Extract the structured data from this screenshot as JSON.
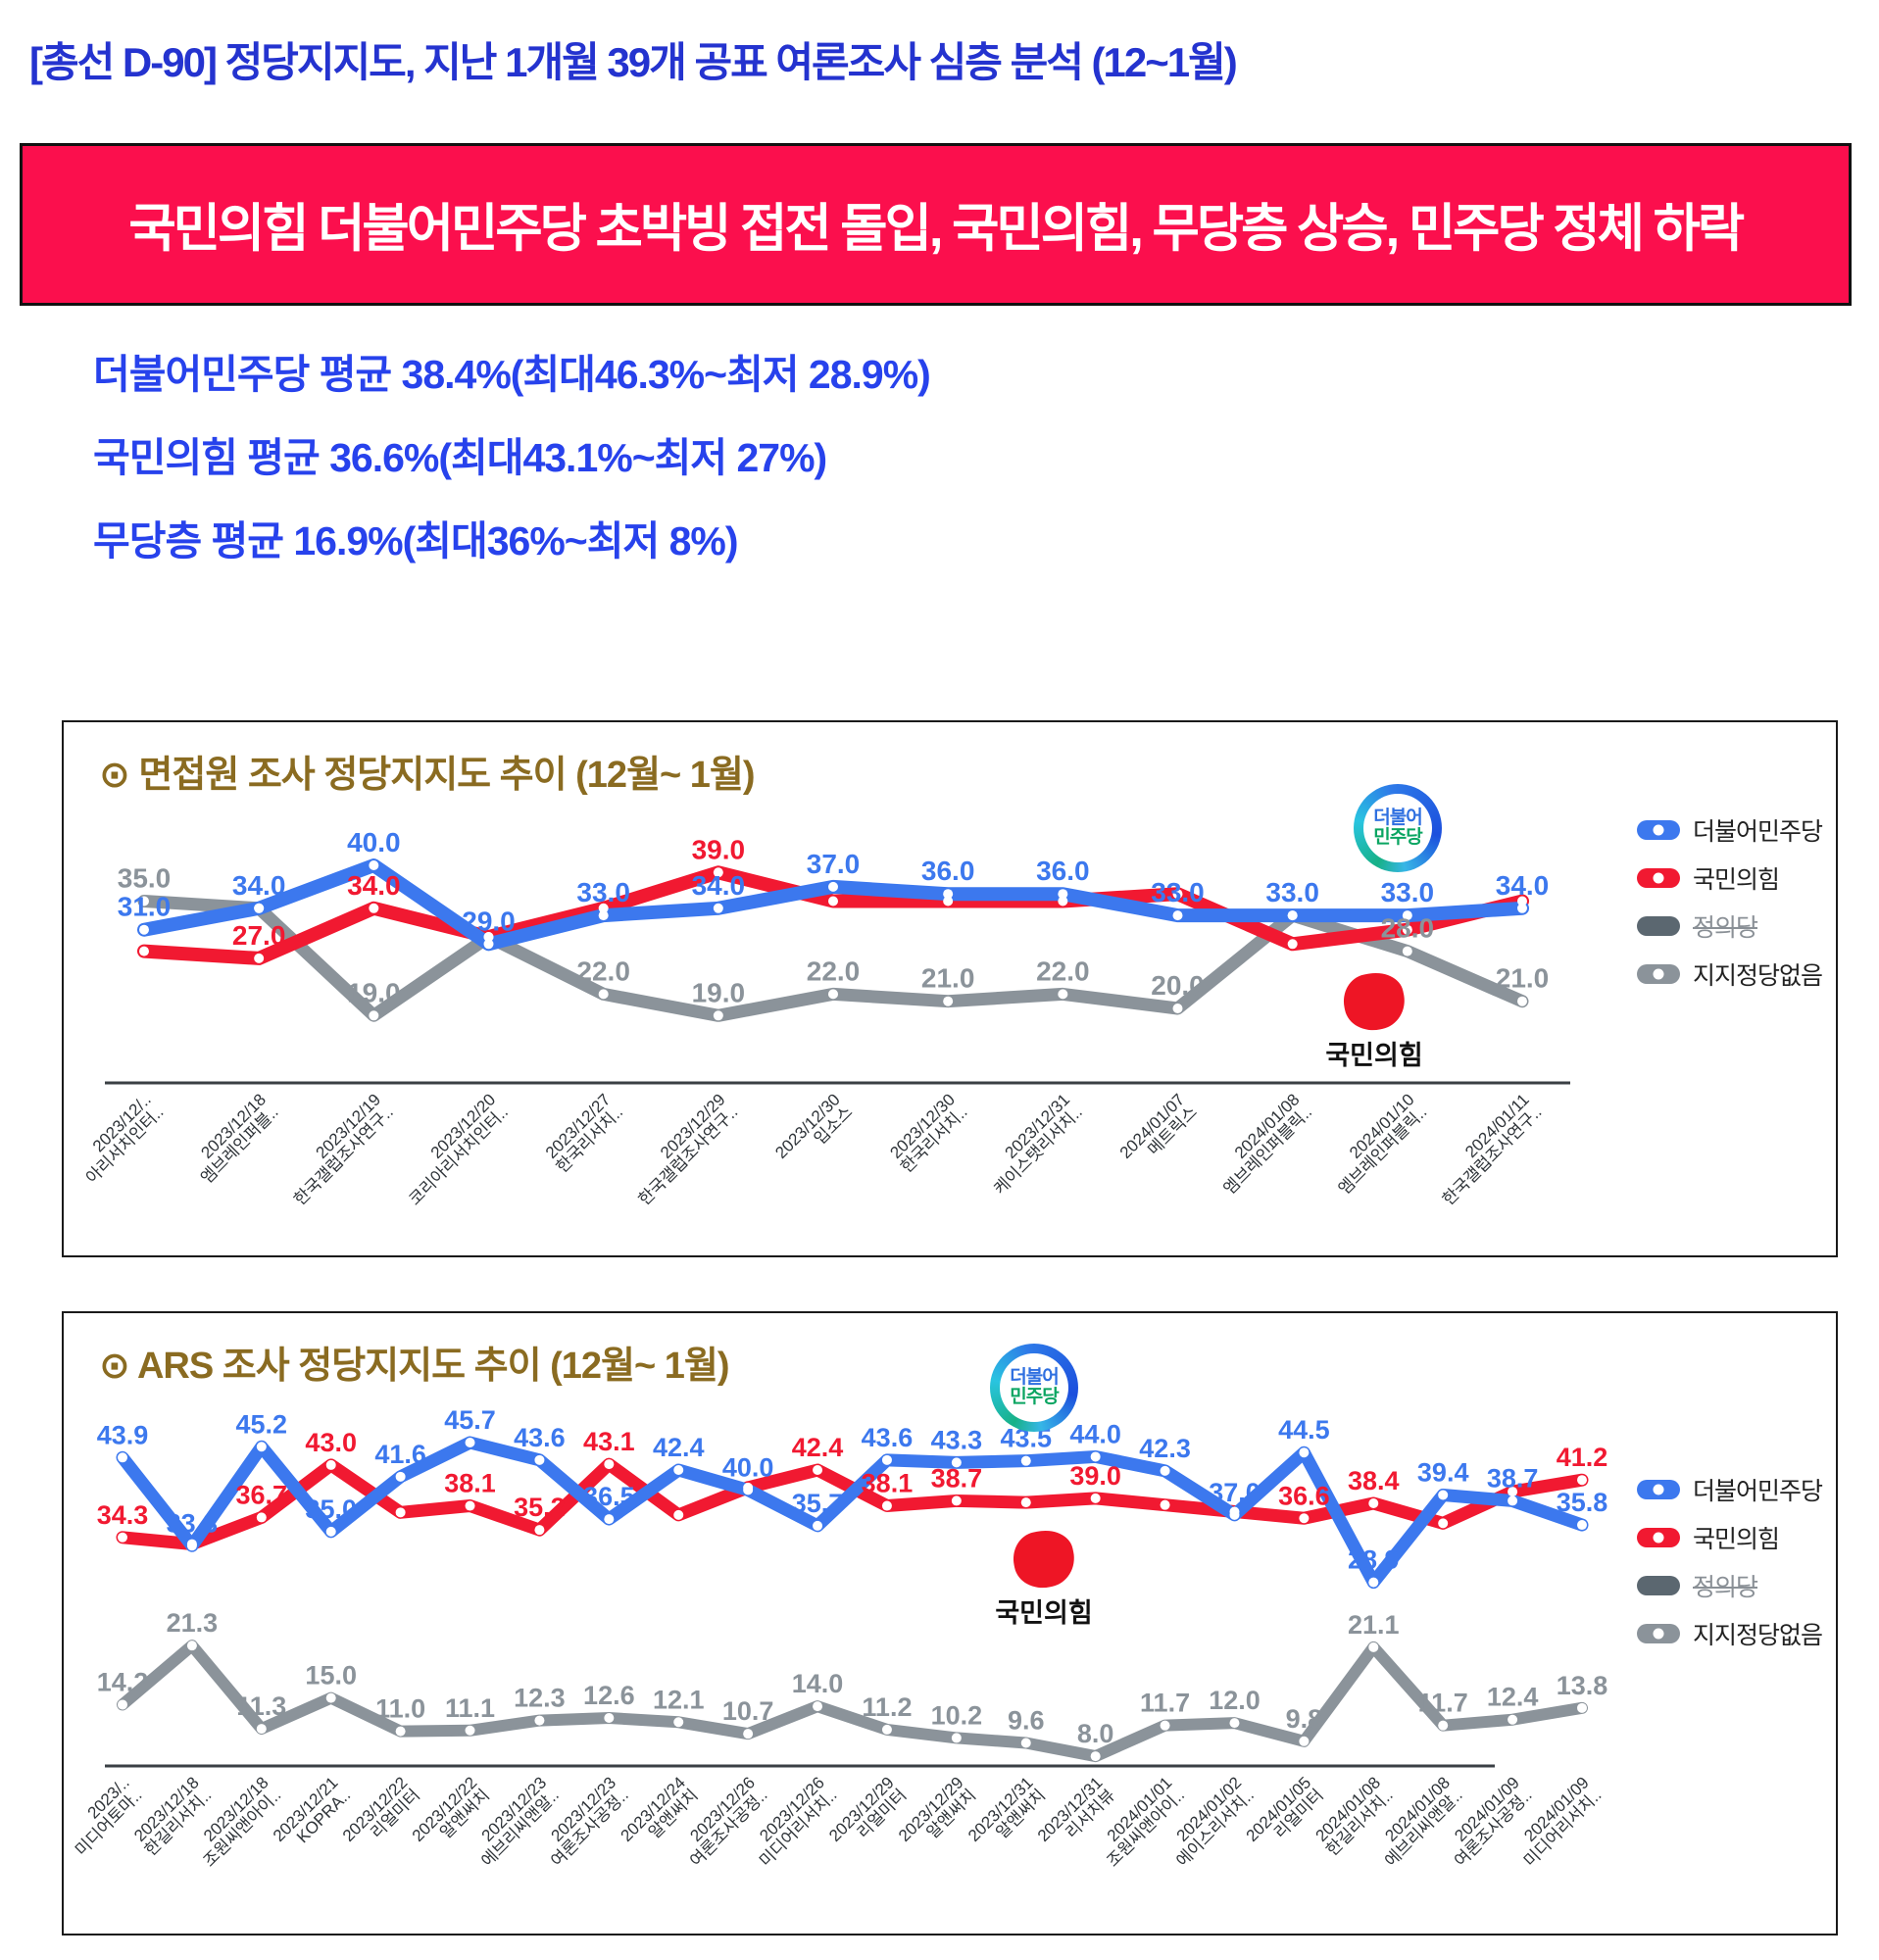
{
  "header": {
    "title": "[총선 D-90] 정당지지도,  지난 1개월 39개 공표 여론조사 심층 분석 (12~1월)"
  },
  "banner": {
    "text": "국민의힘 더불어민주당 초박빙 접전 돌입, 국민의힘, 무당층 상승,  민주당 정체 하락",
    "bg_color": "#fb0f4d",
    "text_color": "#ffffff"
  },
  "stats": [
    "더불어민주당 평균 38.4%(최대46.3%~최저 28.9%)",
    "국민의힘 평균 36.6%(최대43.1%~최저 27%)",
    "무당층 평균 16.9%(최대36%~최저 8%)"
  ],
  "colors": {
    "democratic_party": "#3c78ee",
    "people_power_party": "#f11931",
    "justice_party": "#5b6770",
    "no_party_support": "#8b939a",
    "title_blue": "#2433cf",
    "stat_blue": "#2742ec",
    "chart_title_brown": "#8a6b21",
    "banner_red": "#fb0f4d"
  },
  "legend_items": [
    {
      "label": "더불어민주당",
      "color": "#3c78ee",
      "dot": true,
      "struck": false
    },
    {
      "label": "국민의힘",
      "color": "#f11931",
      "dot": true,
      "struck": false
    },
    {
      "label": "정의당",
      "color": "#5b6770",
      "dot": false,
      "struck": true
    },
    {
      "label": "지지정당없음",
      "color": "#8b939a",
      "dot": true,
      "struck": false
    }
  ],
  "logos": {
    "dp_line1": "더불어",
    "dp_line2": "민주당",
    "ppp_label": "국민의힘"
  },
  "chart_data": [
    {
      "type": "line",
      "title": "⊙ 면접원 조사 정당지지도 추이  (12월~ 1월)",
      "xlabel": "",
      "ylabel": "",
      "ylim": [
        17,
        43
      ],
      "grid": false,
      "legend_position": "right-inside",
      "x_tick_rotation": -45,
      "categories": [
        {
          "date": "2023/12/..",
          "org": "아리서치인터.."
        },
        {
          "date": "2023/12/18",
          "org": "엠브레인퍼블.."
        },
        {
          "date": "2023/12/19",
          "org": "한국갤럽조사연구.."
        },
        {
          "date": "2023/12/20",
          "org": "코리아리서치인터.."
        },
        {
          "date": "2023/12/27",
          "org": "한국리서치.."
        },
        {
          "date": "2023/12/29",
          "org": "한국갤럽조사연구.."
        },
        {
          "date": "2023/12/30",
          "org": "입소스"
        },
        {
          "date": "2023/12/30",
          "org": "한국리서치.."
        },
        {
          "date": "2023/12/31",
          "org": "케이스탯리서치.."
        },
        {
          "date": "2024/01/07",
          "org": "메트릭스"
        },
        {
          "date": "2024/01/08",
          "org": "엠브레인퍼블릭.."
        },
        {
          "date": "2024/01/10",
          "org": "엠브레인퍼블릭.."
        },
        {
          "date": "2024/01/11",
          "org": "한국갤럽조사연구.."
        }
      ],
      "series": [
        {
          "id": "democratic-party",
          "name": "더불어민주당",
          "color": "#3c78ee",
          "width": 14,
          "values": [
            31,
            34,
            40,
            29,
            33,
            34,
            37,
            36,
            36,
            33,
            33,
            33,
            34
          ],
          "labels": [
            "31.0",
            "34.0",
            "40.0",
            "29.0",
            "33.0",
            "34.0",
            "37.0",
            "36.0",
            "36.0",
            "33.0",
            "33.0",
            "33.0",
            "34.0"
          ]
        },
        {
          "id": "people-power-party",
          "name": "국민의힘",
          "color": "#f11931",
          "width": 14,
          "values": [
            28,
            27,
            34,
            30,
            34,
            39,
            35,
            35,
            35,
            36,
            29,
            31,
            35
          ],
          "labels": [
            null,
            "27.0",
            "34.0",
            null,
            null,
            "39.0",
            null,
            null,
            null,
            null,
            null,
            null,
            null
          ]
        },
        {
          "id": "no-party-support",
          "name": "지지정당없음",
          "color": "#8b939a",
          "width": 13,
          "values": [
            35,
            34,
            19,
            30,
            22,
            19,
            22,
            21,
            22,
            20,
            33,
            28,
            21
          ],
          "labels": [
            "35.0",
            null,
            "19.0",
            null,
            "22.0",
            "19.0",
            "22.0",
            "21.0",
            "22.0",
            "20.0",
            null,
            "28.0",
            "21.0"
          ]
        }
      ]
    },
    {
      "type": "line",
      "title": "⊙ ARS 조사 정당지지도 추이  (12월~ 1월)",
      "xlabel": "",
      "ylabel": "",
      "ylim": [
        6,
        48
      ],
      "grid": false,
      "legend_position": "right-inside",
      "x_tick_rotation": -45,
      "categories": [
        {
          "date": "2023/..",
          "org": "미디어토마.."
        },
        {
          "date": "2023/12/18",
          "org": "한길리서치.."
        },
        {
          "date": "2023/12/18",
          "org": "조원씨앤아이.."
        },
        {
          "date": "2023/12/21",
          "org": "KOPRA.."
        },
        {
          "date": "2023/12/22",
          "org": "리얼미터"
        },
        {
          "date": "2023/12/22",
          "org": "알앤써치"
        },
        {
          "date": "2023/12/23",
          "org": "에브리씨앤알.."
        },
        {
          "date": "2023/12/23",
          "org": "여론조사공정.."
        },
        {
          "date": "2023/12/24",
          "org": "알앤써치"
        },
        {
          "date": "2023/12/26",
          "org": "여론조사공정.."
        },
        {
          "date": "2023/12/26",
          "org": "미디어리서치.."
        },
        {
          "date": "2023/12/29",
          "org": "리얼미터"
        },
        {
          "date": "2023/12/29",
          "org": "알앤써치"
        },
        {
          "date": "2023/12/31",
          "org": "알앤써치"
        },
        {
          "date": "2023/12/31",
          "org": "리서치뷰"
        },
        {
          "date": "2024/01/01",
          "org": "조원씨앤아이.."
        },
        {
          "date": "2024/01/02",
          "org": "에이스리서치.."
        },
        {
          "date": "2024/01/05",
          "org": "리얼미터"
        },
        {
          "date": "2024/01/08",
          "org": "한길리서치.."
        },
        {
          "date": "2024/01/08",
          "org": "에브리씨앤알.."
        },
        {
          "date": "2024/01/09",
          "org": "여론조사공정.."
        },
        {
          "date": "2024/01/09",
          "org": "미디어리서치.."
        }
      ],
      "series": [
        {
          "id": "democratic-party",
          "name": "더불어민주당",
          "color": "#3c78ee",
          "width": 13,
          "values": [
            43.9,
            33.3,
            45.2,
            35.0,
            41.6,
            45.7,
            43.6,
            36.5,
            42.4,
            40.0,
            35.7,
            43.6,
            43.3,
            43.5,
            44.0,
            42.3,
            37.0,
            44.5,
            28.9,
            39.4,
            38.7,
            35.8
          ],
          "labels": [
            "43.9",
            "33.3",
            "45.2",
            "35.0",
            "41.6",
            "45.7",
            "43.6",
            "36.5",
            "42.4",
            "40.0",
            "35.7",
            "43.6",
            "43.3",
            "43.5",
            "44.0",
            "42.3",
            "37.0",
            "44.5",
            "28.9",
            "39.4",
            "38.7",
            "35.8"
          ]
        },
        {
          "id": "people-power-party",
          "name": "국민의힘",
          "color": "#f11931",
          "width": 13,
          "values": [
            34.3,
            33.5,
            36.7,
            43.0,
            37.3,
            38.1,
            35.2,
            43.1,
            37.0,
            40.3,
            42.4,
            38.1,
            38.7,
            38.5,
            39.0,
            38.2,
            37.4,
            36.6,
            38.4,
            36.0,
            39.8,
            41.2
          ],
          "labels": [
            "34.3",
            null,
            "36.7",
            "43.0",
            null,
            "38.1",
            "35.2",
            "43.1",
            null,
            null,
            "42.4",
            "38.1",
            "38.7",
            null,
            "39.0",
            null,
            null,
            "36.6",
            "38.4",
            null,
            null,
            "41.2"
          ]
        },
        {
          "id": "no-party-support",
          "name": "지지정당없음",
          "color": "#8b939a",
          "width": 12,
          "values": [
            14.2,
            21.3,
            11.3,
            15.0,
            11.0,
            11.1,
            12.3,
            12.6,
            12.1,
            10.7,
            14.0,
            11.2,
            10.2,
            9.6,
            8.0,
            11.7,
            12.0,
            9.8,
            21.1,
            11.7,
            12.4,
            13.8
          ],
          "labels": [
            "14.2",
            "21.3",
            "11.3",
            "15.0",
            "11.0",
            "11.1",
            "12.3",
            "12.6",
            "12.1",
            "10.7",
            "14.0",
            "11.2",
            "10.2",
            "9.6",
            "8.0",
            "11.7",
            "12.0",
            "9.8",
            "21.1",
            "11.7",
            "12.4",
            "13.8"
          ]
        }
      ]
    }
  ]
}
